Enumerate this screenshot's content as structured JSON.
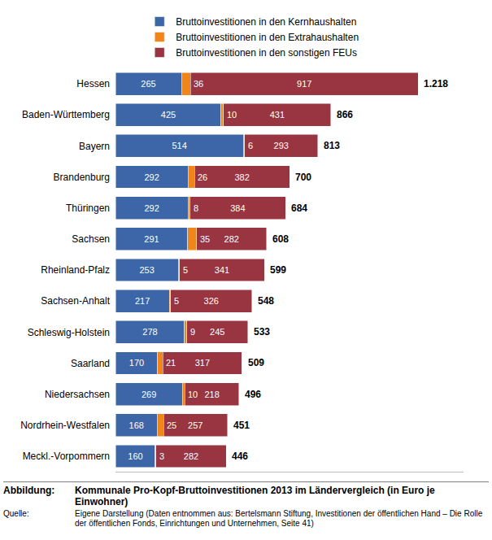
{
  "chart_data": {
    "type": "bar",
    "orientation": "horizontal",
    "stacked": true,
    "data_labels": true,
    "tick_labels": "y",
    "grid": false,
    "legend": "top",
    "categories": [
      "Hessen",
      "Baden-Württemberg",
      "Bayern",
      "Brandenburg",
      "Thüringen",
      "Sachsen",
      "Rheinland-Pfalz",
      "Sachsen-Anhalt",
      "Schleswig-Holstein",
      "Saarland",
      "Niedersachsen",
      "Nordrhein-Westfalen",
      "Meckl.-Vorpommern"
    ],
    "series": [
      {
        "name": "Bruttoinvestitionen in den Kernhaushalten",
        "color": "#3c66a8",
        "values": [
          265,
          425,
          514,
          292,
          292,
          291,
          253,
          217,
          278,
          170,
          269,
          168,
          160
        ]
      },
      {
        "name": "Bruttoinvestitionen in den Extrahaushalten",
        "color": "#f0851a",
        "values": [
          36,
          10,
          6,
          26,
          8,
          35,
          5,
          5,
          9,
          21,
          10,
          25,
          3
        ]
      },
      {
        "name": "Bruttoinvestitionen in den sonstigen FEUs",
        "color": "#983540",
        "values": [
          917,
          431,
          293,
          382,
          384,
          282,
          341,
          326,
          245,
          317,
          218,
          257,
          282
        ]
      }
    ],
    "totals": [
      1218,
      866,
      813,
      700,
      684,
      608,
      599,
      548,
      533,
      509,
      496,
      451,
      446
    ],
    "total_labels": [
      "1.218",
      "866",
      "813",
      "700",
      "684",
      "608",
      "599",
      "548",
      "533",
      "509",
      "496",
      "451",
      "446"
    ],
    "xlim": [
      0,
      1400
    ],
    "xticks": []
  },
  "notes": [
    {
      "label": "Abbildung:",
      "text": "Kommunale Pro-Kopf-Bruttoinvestitionen 2013 im Ländervergleich (in Euro je Einwohner)"
    },
    {
      "label": "Quelle:",
      "text": "Eigene Darstellung (Daten entnommen aus: Bertelsmann Stiftung, Investitionen der öffentlichen Hand – Die Rolle der öffentlichen Fonds, Einrichtungen und Unternehmen, Seite 41)"
    }
  ]
}
